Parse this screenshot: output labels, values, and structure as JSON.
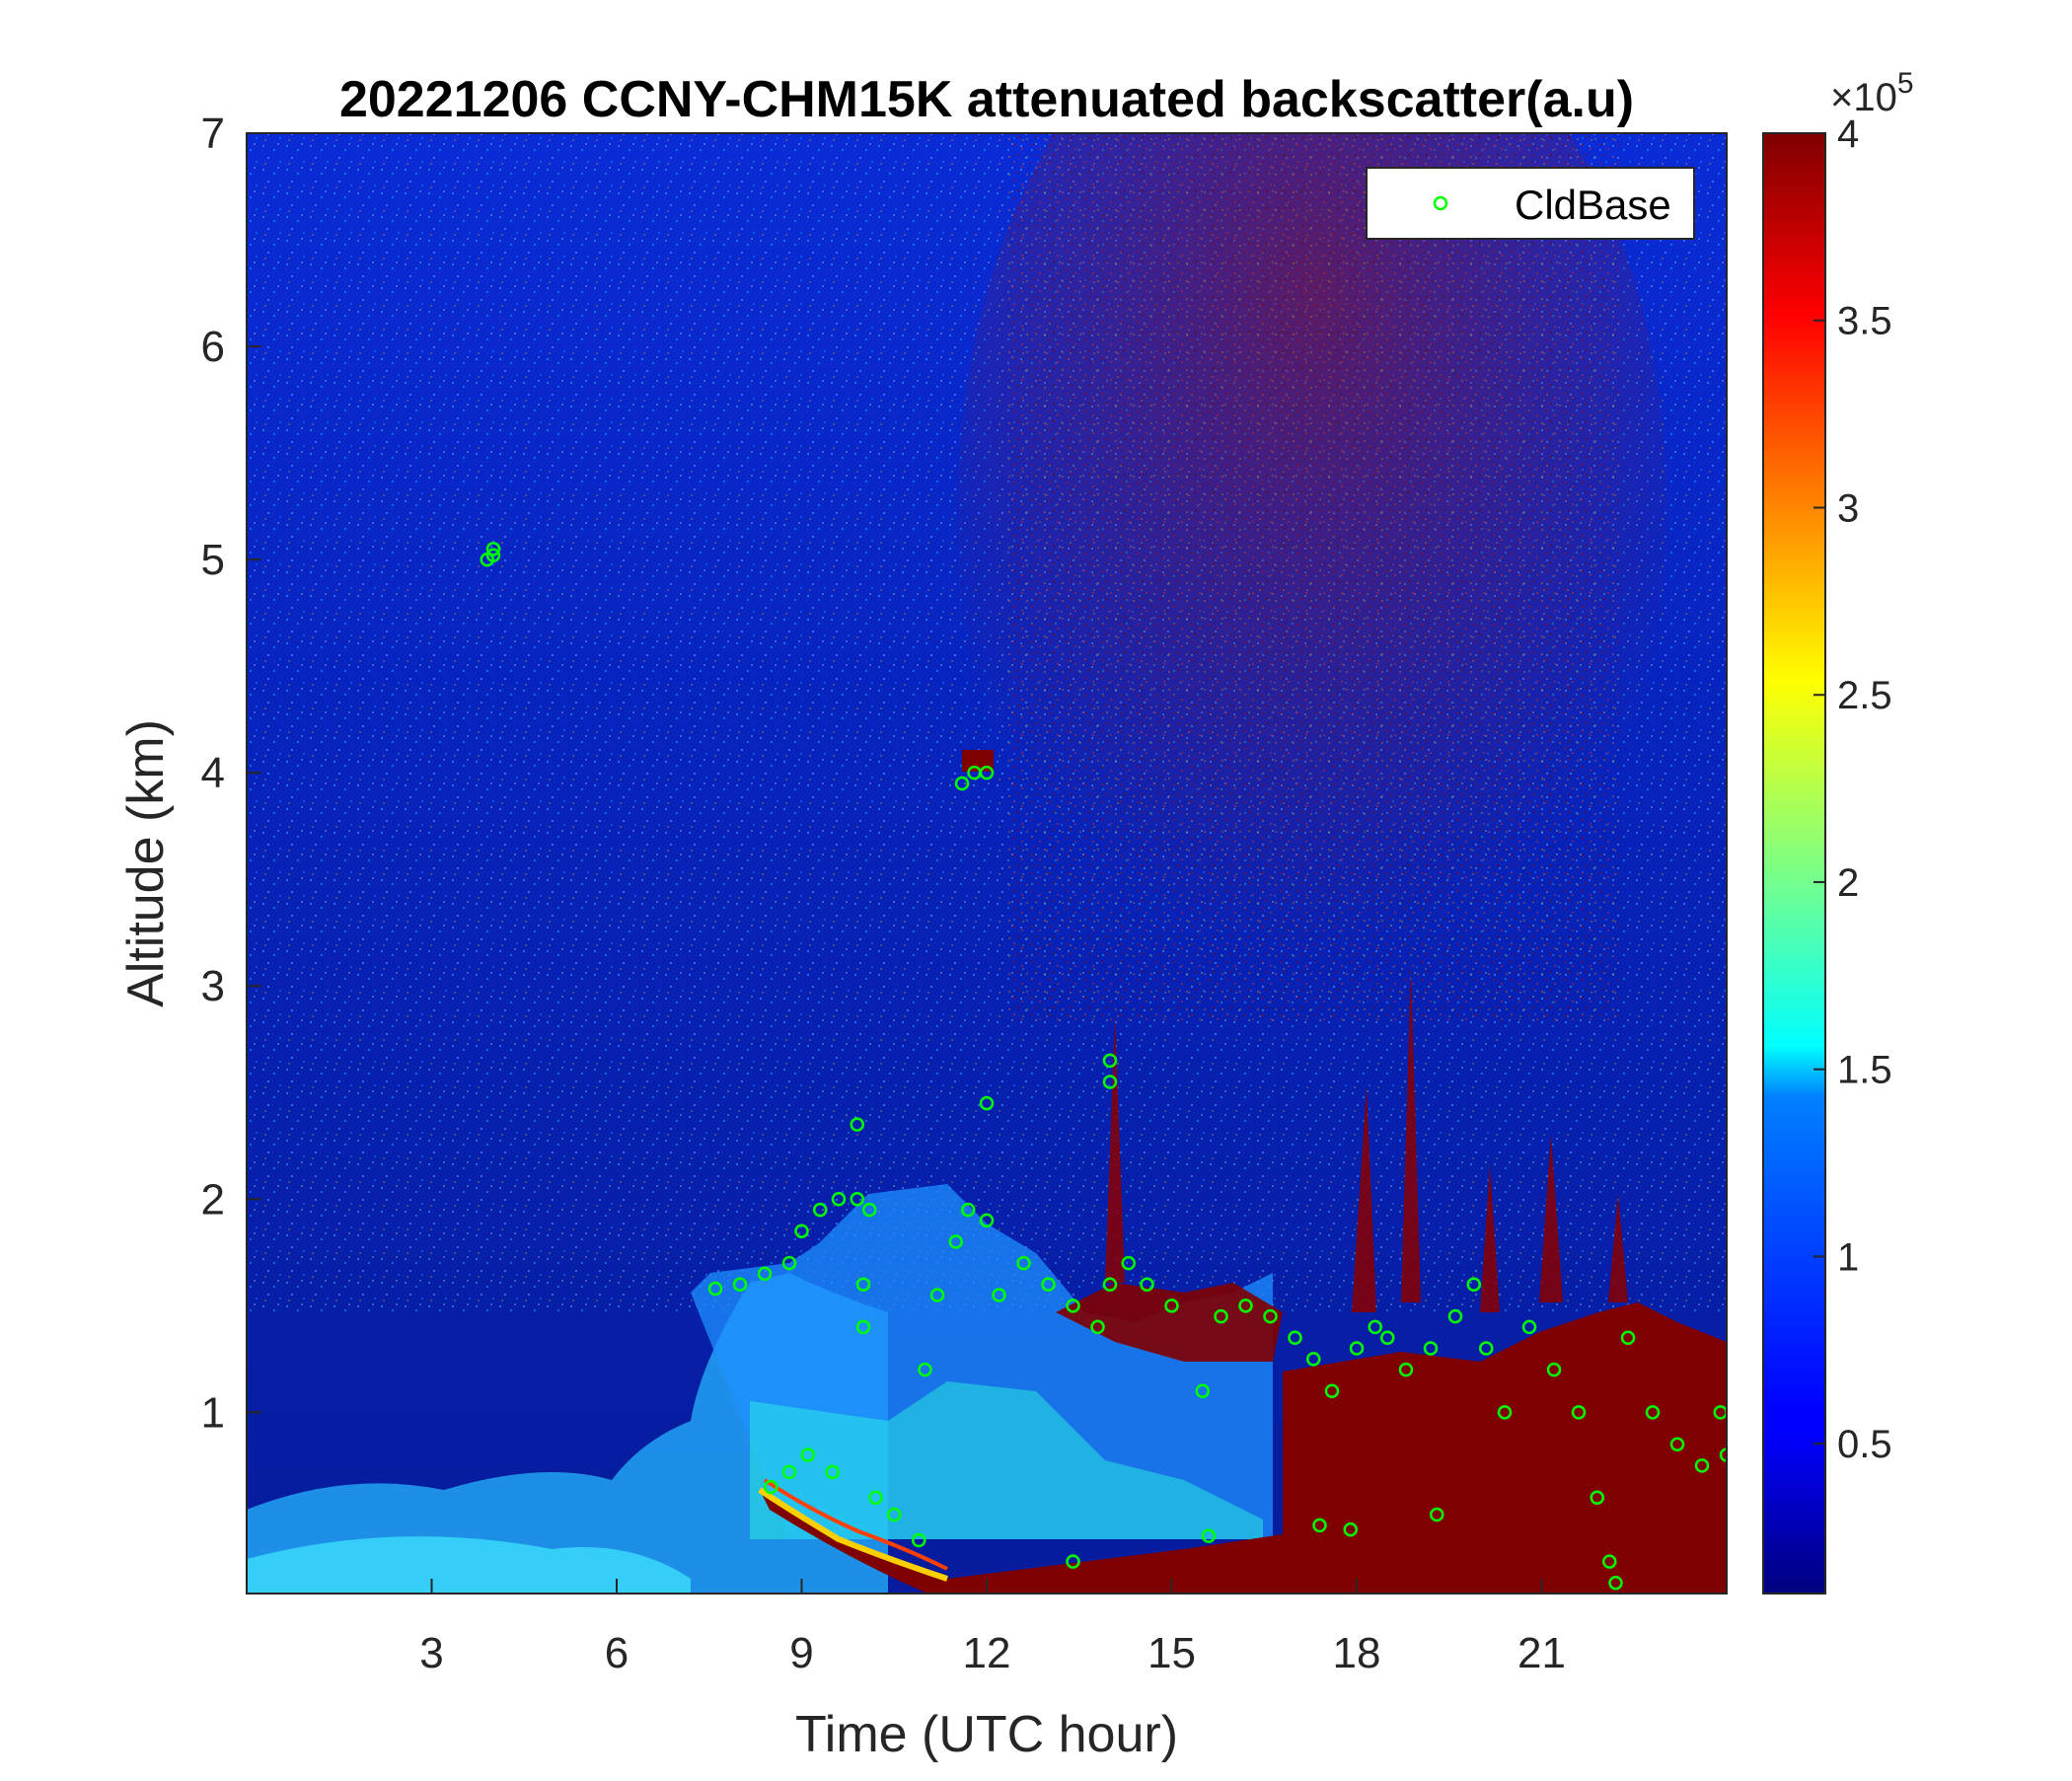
{
  "chart_data": {
    "type": "heatmap",
    "title": "20221206 CCNY-CHM15K attenuated backscatter(a.u)",
    "xlabel": "Time (UTC hour)",
    "ylabel": "Altitude (km)",
    "xlim": [
      0,
      24
    ],
    "ylim": [
      0.15,
      7
    ],
    "x_ticks": [
      3,
      6,
      9,
      12,
      15,
      18,
      21
    ],
    "y_ticks": [
      1,
      2,
      3,
      4,
      5,
      6,
      7
    ],
    "colorbar": {
      "colormap": "jet",
      "range": [
        0.1,
        4
      ],
      "ticks": [
        0.5,
        1,
        1.5,
        2,
        2.5,
        3,
        3.5,
        4
      ],
      "exponent_label": "×10",
      "exponent": "5"
    },
    "legend": {
      "position": "top-right",
      "entries": [
        "CldBase"
      ]
    },
    "series": [
      {
        "name": "CldBase",
        "marker": "circle",
        "color": "#00ff00",
        "points": [
          [
            3.9,
            5.0
          ],
          [
            4.0,
            5.02
          ],
          [
            4.0,
            5.05
          ],
          [
            11.6,
            3.95
          ],
          [
            11.8,
            4.0
          ],
          [
            12.0,
            4.0
          ],
          [
            9.9,
            2.35
          ],
          [
            12.0,
            2.45
          ],
          [
            14.0,
            2.55
          ],
          [
            14.0,
            2.65
          ],
          [
            7.6,
            1.58
          ],
          [
            8.0,
            1.6
          ],
          [
            8.4,
            1.65
          ],
          [
            8.8,
            1.7
          ],
          [
            9.0,
            1.85
          ],
          [
            9.3,
            1.95
          ],
          [
            9.6,
            2.0
          ],
          [
            9.9,
            2.0
          ],
          [
            10.1,
            1.95
          ],
          [
            10.0,
            1.6
          ],
          [
            10.0,
            1.4
          ],
          [
            8.5,
            0.65
          ],
          [
            8.8,
            0.72
          ],
          [
            9.1,
            0.8
          ],
          [
            9.5,
            0.72
          ],
          [
            10.2,
            0.6
          ],
          [
            10.5,
            0.52
          ],
          [
            10.9,
            0.4
          ],
          [
            11.0,
            1.2
          ],
          [
            11.2,
            1.55
          ],
          [
            11.5,
            1.8
          ],
          [
            11.7,
            1.95
          ],
          [
            12.0,
            1.9
          ],
          [
            12.2,
            1.55
          ],
          [
            12.6,
            1.7
          ],
          [
            13.0,
            1.6
          ],
          [
            13.4,
            1.5
          ],
          [
            13.8,
            1.4
          ],
          [
            13.4,
            0.3
          ],
          [
            14.0,
            1.6
          ],
          [
            14.3,
            1.7
          ],
          [
            14.6,
            1.6
          ],
          [
            15.0,
            1.5
          ],
          [
            15.5,
            1.1
          ],
          [
            15.6,
            0.42
          ],
          [
            15.8,
            1.45
          ],
          [
            16.2,
            1.5
          ],
          [
            16.6,
            1.45
          ],
          [
            17.0,
            1.35
          ],
          [
            17.3,
            1.25
          ],
          [
            17.6,
            1.1
          ],
          [
            17.4,
            0.47
          ],
          [
            17.9,
            0.45
          ],
          [
            18.0,
            1.3
          ],
          [
            18.3,
            1.4
          ],
          [
            18.5,
            1.35
          ],
          [
            18.8,
            1.2
          ],
          [
            19.2,
            1.3
          ],
          [
            19.3,
            0.52
          ],
          [
            19.6,
            1.45
          ],
          [
            19.9,
            1.6
          ],
          [
            20.1,
            1.3
          ],
          [
            20.4,
            1.0
          ],
          [
            20.8,
            1.4
          ],
          [
            21.2,
            1.2
          ],
          [
            21.6,
            1.0
          ],
          [
            21.9,
            0.6
          ],
          [
            22.1,
            0.3
          ],
          [
            22.2,
            0.2
          ],
          [
            22.4,
            1.35
          ],
          [
            22.8,
            1.0
          ],
          [
            23.2,
            0.85
          ],
          [
            23.6,
            0.75
          ],
          [
            23.9,
            1.0
          ],
          [
            24.0,
            0.8
          ]
        ]
      }
    ]
  }
}
